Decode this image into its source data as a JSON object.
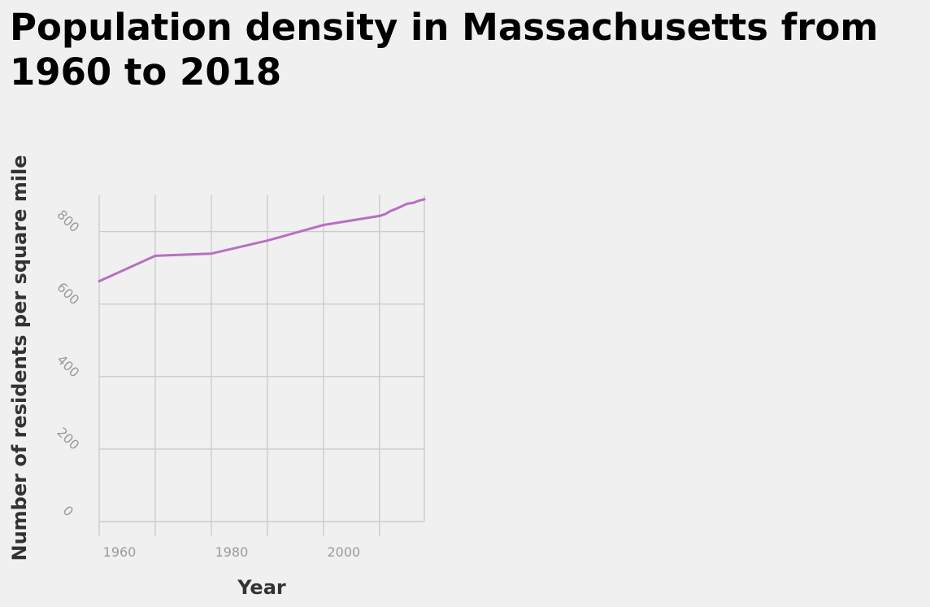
{
  "chart_data": {
    "type": "line",
    "title": "Population density in Massachusetts from 1960 to 2018",
    "xlabel": "Year",
    "ylabel": "Number of residents per square mile",
    "xlim": [
      1960,
      2018
    ],
    "ylim": [
      0,
      900
    ],
    "x_ticks": [
      1960,
      1980,
      2000
    ],
    "x_tick_labels": [
      "1960",
      "1980",
      "2000"
    ],
    "y_ticks": [
      0,
      200,
      400,
      600,
      800
    ],
    "y_tick_labels": [
      "0",
      "200",
      "400",
      "600",
      "800"
    ],
    "grid": true,
    "series": [
      {
        "color": "#b86fc0",
        "x": [
          1960,
          1970,
          1980,
          1990,
          2000,
          2010,
          2011,
          2012,
          2013,
          2014,
          2015,
          2016,
          2017,
          2018
        ],
        "y": [
          663,
          733,
          739,
          775,
          818,
          843,
          848,
          857,
          863,
          870,
          877,
          879,
          885,
          889
        ]
      }
    ]
  }
}
